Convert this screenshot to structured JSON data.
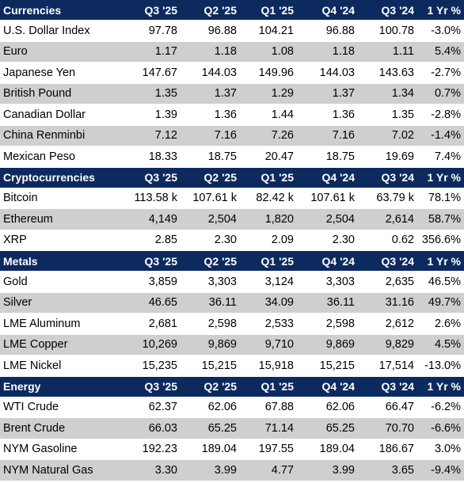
{
  "columns": [
    "Q3 '25",
    "Q2 '25",
    "Q1 '25",
    "Q4 '24",
    "Q3 '24",
    "1 Yr %"
  ],
  "colors": {
    "header_bg": "#0d2a5f",
    "stripe": "#cfcfcf",
    "positive": "#1e9a2e",
    "negative": "#e3262b"
  },
  "sections": [
    {
      "title": "Currencies",
      "rows": [
        {
          "name": "U.S. Dollar Index",
          "values": [
            "97.78",
            "96.88",
            "104.21",
            "96.88",
            "100.78"
          ],
          "change": "-3.0%",
          "dir": "neg"
        },
        {
          "name": "Euro",
          "values": [
            "1.17",
            "1.18",
            "1.08",
            "1.18",
            "1.11"
          ],
          "change": "5.4%",
          "dir": "pos"
        },
        {
          "name": "Japanese Yen",
          "values": [
            "147.67",
            "144.03",
            "149.96",
            "144.03",
            "143.63"
          ],
          "change": "-2.7%",
          "dir": "neg"
        },
        {
          "name": "British Pound",
          "values": [
            "1.35",
            "1.37",
            "1.29",
            "1.37",
            "1.34"
          ],
          "change": "0.7%",
          "dir": "pos"
        },
        {
          "name": "Canadian Dollar",
          "values": [
            "1.39",
            "1.36",
            "1.44",
            "1.36",
            "1.35"
          ],
          "change": "-2.8%",
          "dir": "neg"
        },
        {
          "name": "China Renminbi",
          "values": [
            "7.12",
            "7.16",
            "7.26",
            "7.16",
            "7.02"
          ],
          "change": "-1.4%",
          "dir": "neg"
        },
        {
          "name": "Mexican Peso",
          "values": [
            "18.33",
            "18.75",
            "20.47",
            "18.75",
            "19.69"
          ],
          "change": "7.4%",
          "dir": "pos"
        }
      ]
    },
    {
      "title": "Cryptocurrencies",
      "rows": [
        {
          "name": "Bitcoin",
          "values": [
            "113.58 k",
            "107.61 k",
            "82.42 k",
            "107.61 k",
            "63.79 k"
          ],
          "change": "78.1%",
          "dir": "pos"
        },
        {
          "name": "Ethereum",
          "values": [
            "4,149",
            "2,504",
            "1,820",
            "2,504",
            "2,614"
          ],
          "change": "58.7%",
          "dir": "pos"
        },
        {
          "name": "XRP",
          "values": [
            "2.85",
            "2.30",
            "2.09",
            "2.30",
            "0.62"
          ],
          "change": "356.6%",
          "dir": "pos"
        }
      ]
    },
    {
      "title": "Metals",
      "rows": [
        {
          "name": "Gold",
          "values": [
            "3,859",
            "3,303",
            "3,124",
            "3,303",
            "2,635"
          ],
          "change": "46.5%",
          "dir": "pos"
        },
        {
          "name": "Silver",
          "values": [
            "46.65",
            "36.11",
            "34.09",
            "36.11",
            "31.16"
          ],
          "change": "49.7%",
          "dir": "pos"
        },
        {
          "name": "LME Aluminum",
          "values": [
            "2,681",
            "2,598",
            "2,533",
            "2,598",
            "2,612"
          ],
          "change": "2.6%",
          "dir": "pos"
        },
        {
          "name": "LME Copper",
          "values": [
            "10,269",
            "9,869",
            "9,710",
            "9,869",
            "9,829"
          ],
          "change": "4.5%",
          "dir": "pos"
        },
        {
          "name": "LME Nickel",
          "values": [
            "15,235",
            "15,215",
            "15,918",
            "15,215",
            "17,514"
          ],
          "change": "-13.0%",
          "dir": "neg"
        }
      ]
    },
    {
      "title": "Energy",
      "rows": [
        {
          "name": "WTI Crude",
          "values": [
            "62.37",
            "62.06",
            "67.88",
            "62.06",
            "66.47"
          ],
          "change": "-6.2%",
          "dir": "neg"
        },
        {
          "name": "Brent Crude",
          "values": [
            "66.03",
            "65.25",
            "71.14",
            "65.25",
            "70.70"
          ],
          "change": "-6.6%",
          "dir": "neg"
        },
        {
          "name": "NYM Gasoline",
          "values": [
            "192.23",
            "189.04",
            "197.55",
            "189.04",
            "186.67"
          ],
          "change": "3.0%",
          "dir": "pos"
        },
        {
          "name": "NYM Natural Gas",
          "values": [
            "3.30",
            "3.99",
            "4.77",
            "3.99",
            "3.65"
          ],
          "change": "-9.4%",
          "dir": "neg"
        }
      ]
    }
  ]
}
